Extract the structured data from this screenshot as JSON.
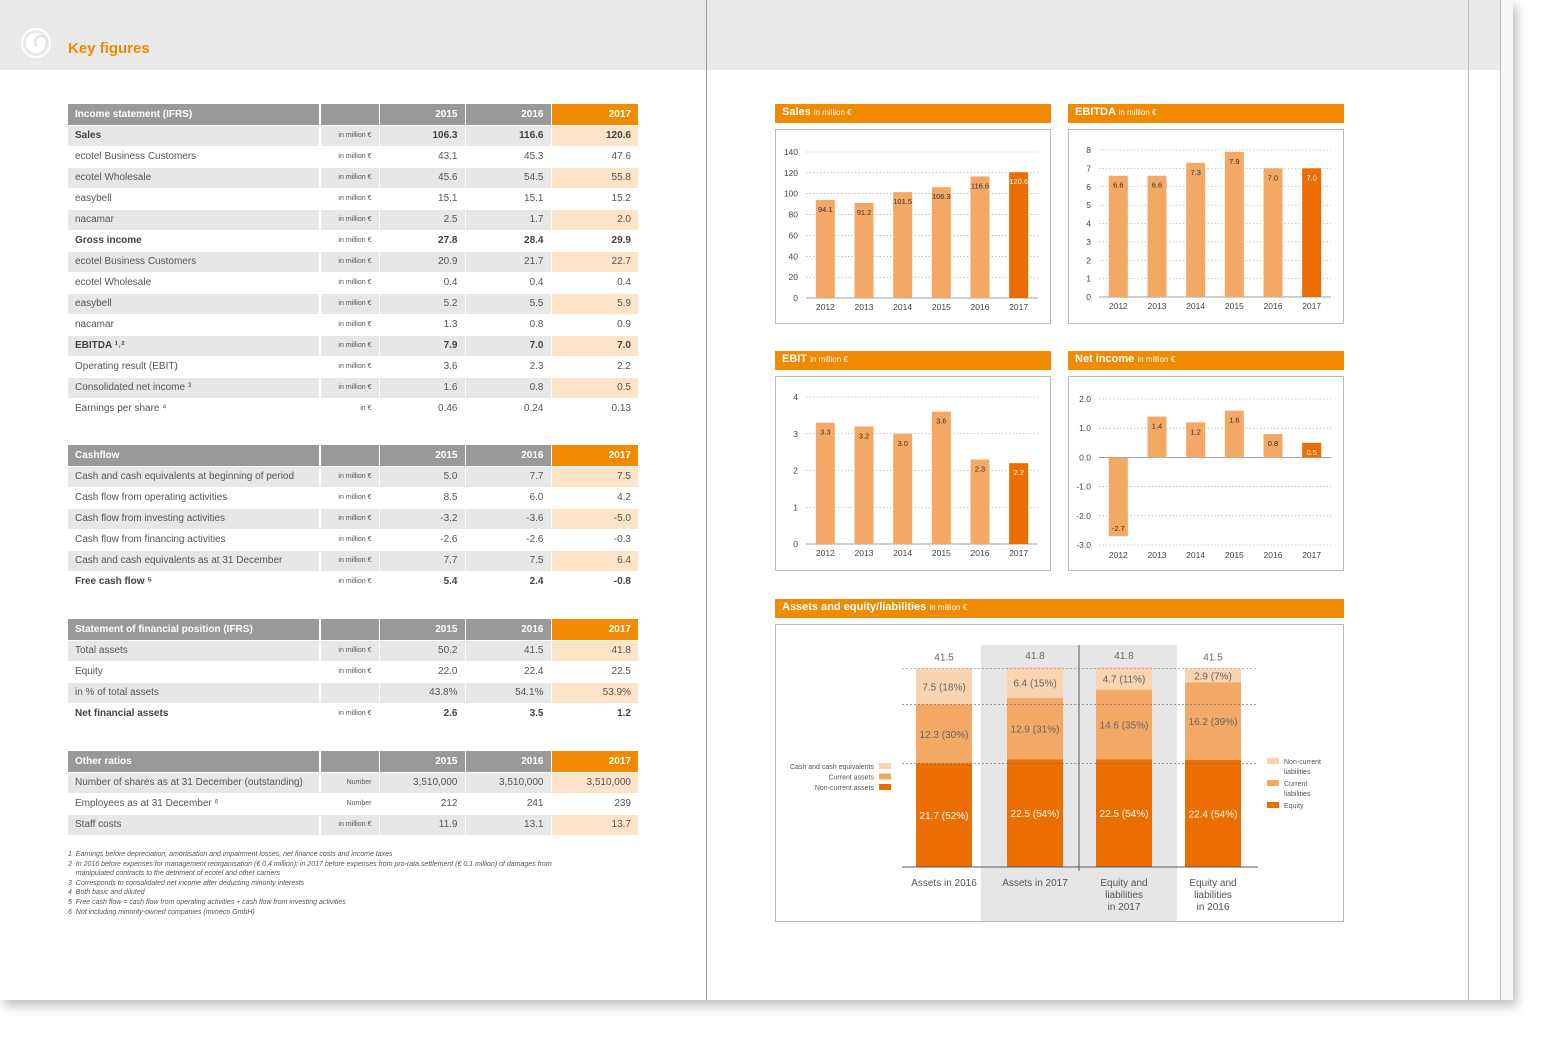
{
  "page_title": "Key figures",
  "colors": {
    "accent": "#f08a00",
    "dark_orange": "#ec6d00",
    "mid_orange": "#f4a865",
    "light_orange": "#fad3b1",
    "header_gray": "#999999"
  },
  "income": {
    "header": [
      "Income statement (IFRS)",
      "",
      "2015",
      "2016",
      "2017"
    ],
    "rows": [
      {
        "label": "Sales",
        "unit": "in million €",
        "v": [
          "106.3",
          "116.6",
          "120.6"
        ],
        "bold": true
      },
      {
        "label": "ecotel Business Customers",
        "unit": "in million €",
        "v": [
          "43.1",
          "45.3",
          "47.6"
        ]
      },
      {
        "label": "ecotel Wholesale",
        "unit": "in million €",
        "v": [
          "45.6",
          "54.5",
          "55.8"
        ]
      },
      {
        "label": "easybell",
        "unit": "in million €",
        "v": [
          "15.1",
          "15.1",
          "15.2"
        ]
      },
      {
        "label": "nacamar",
        "unit": "in million €",
        "v": [
          "2.5",
          "1.7",
          "2.0"
        ]
      },
      {
        "label": "Gross income",
        "unit": "in million €",
        "v": [
          "27.8",
          "28.4",
          "29.9"
        ],
        "bold": true
      },
      {
        "label": "ecotel Business Customers",
        "unit": "in million €",
        "v": [
          "20.9",
          "21.7",
          "22.7"
        ]
      },
      {
        "label": "ecotel Wholesale",
        "unit": "in million €",
        "v": [
          "0.4",
          "0.4",
          "0.4"
        ]
      },
      {
        "label": "easybell",
        "unit": "in million €",
        "v": [
          "5.2",
          "5.5",
          "5.9"
        ]
      },
      {
        "label": "nacamar",
        "unit": "in million €",
        "v": [
          "1.3",
          "0.8",
          "0.9"
        ]
      },
      {
        "label": "EBITDA ¹˒²",
        "unit": "in million €",
        "v": [
          "7.9",
          "7.0",
          "7.0"
        ],
        "bold": true
      },
      {
        "label": "Operating result (EBIT)",
        "unit": "in million €",
        "v": [
          "3.6",
          "2.3",
          "2.2"
        ]
      },
      {
        "label": "Consolidated net income ³",
        "unit": "in million €",
        "v": [
          "1.6",
          "0.8",
          "0.5"
        ]
      },
      {
        "label": "Earnings per share ⁴",
        "unit": "in €",
        "v": [
          "0.46",
          "0.24",
          "0.13"
        ]
      }
    ]
  },
  "cashflow": {
    "header": [
      "Cashflow",
      "",
      "2015",
      "2016",
      "2017"
    ],
    "rows": [
      {
        "label": "Cash and cash equivalents at beginning of period",
        "unit": "in million €",
        "v": [
          "5.0",
          "7.7",
          "7.5"
        ]
      },
      {
        "label": "Cash flow from operating activities",
        "unit": "in million €",
        "v": [
          "8.5",
          "6.0",
          "4.2"
        ]
      },
      {
        "label": "Cash flow from investing activities",
        "unit": "in million €",
        "v": [
          "-3.2",
          "-3.6",
          "-5.0"
        ]
      },
      {
        "label": "Cash flow from financing activities",
        "unit": "in million €",
        "v": [
          "-2.6",
          "-2.6",
          "-0.3"
        ]
      },
      {
        "label": "Cash and cash equivalents as at 31 December",
        "unit": "in million €",
        "v": [
          "7.7",
          "7.5",
          "6.4"
        ]
      },
      {
        "label": "Free cash flow ⁵",
        "unit": "in million €",
        "v": [
          "5.4",
          "2.4",
          "-0.8"
        ],
        "bold": true
      }
    ]
  },
  "position": {
    "header": [
      "Statement of financial position (IFRS)",
      "",
      "2015",
      "2016",
      "2017"
    ],
    "rows": [
      {
        "label": "Total assets",
        "unit": "in million €",
        "v": [
          "50.2",
          "41.5",
          "41.8"
        ]
      },
      {
        "label": "Equity",
        "unit": "in million €",
        "v": [
          "22.0",
          "22.4",
          "22.5"
        ]
      },
      {
        "label": "in % of total assets",
        "unit": "",
        "v": [
          "43.8%",
          "54.1%",
          "53.9%"
        ]
      },
      {
        "label": "Net financial assets",
        "unit": "in million €",
        "v": [
          "2.6",
          "3.5",
          "1.2"
        ],
        "bold": true
      }
    ]
  },
  "other": {
    "header": [
      "Other ratios",
      "",
      "2015",
      "2016",
      "2017"
    ],
    "rows": [
      {
        "label": "Number of shares as at 31 December (outstanding)",
        "unit": "Number",
        "v": [
          "3,510,000",
          "3,510,000",
          "3,510,000"
        ]
      },
      {
        "label": "Employees as at 31 December ⁶",
        "unit": "Number",
        "v": [
          "212",
          "241",
          "239"
        ]
      },
      {
        "label": "Staff costs",
        "unit": "in million €",
        "v": [
          "11.9",
          "13.1",
          "13.7"
        ]
      }
    ]
  },
  "footnotes": [
    "1  Earnings before depreciation, amortisation and impairment losses, net finance costs and income taxes",
    "2  In 2016 before expenses for management reorganisation (€ 0.4 million); in 2017 before expenses from pro-rata settlement (€ 0.1 million) of damages from",
    "    manipulated contracts to the detriment of ecotel and other carriers",
    "3  Corresponds to consolidated net income after deducting minority interests",
    "4  Both basic and diluted",
    "5  Free cash flow = cash flow from operating activities + cash flow from investing activities",
    "6  Not including minority-owned companies (mvneco GmbH)"
  ],
  "chart_data": [
    {
      "type": "bar",
      "title": "Sales",
      "unit": "in million €",
      "categories": [
        "2012",
        "2013",
        "2014",
        "2015",
        "2016",
        "2017"
      ],
      "values": [
        94.1,
        91.2,
        101.5,
        106.3,
        116.6,
        120.6
      ],
      "labels": [
        "94.1",
        "91.2",
        "101.5",
        "106.3",
        "116.6",
        "120.6"
      ],
      "yticks": [
        "0",
        "20",
        "40",
        "60",
        "80",
        "100",
        "120",
        "140"
      ],
      "ylim": [
        0,
        140
      ],
      "grid": true
    },
    {
      "type": "bar",
      "title": "EBITDA",
      "unit": "in million €",
      "categories": [
        "2012",
        "2013",
        "2014",
        "2015",
        "2016",
        "2017"
      ],
      "values": [
        6.6,
        6.6,
        7.3,
        7.9,
        7.0,
        7.0
      ],
      "labels": [
        "6.6",
        "6.6",
        "7.3",
        "7.9",
        "7.0",
        "7.0"
      ],
      "yticks": [
        "0",
        "1",
        "2",
        "3",
        "4",
        "5",
        "6",
        "7",
        "8"
      ],
      "ylim": [
        0,
        8
      ],
      "grid": true
    },
    {
      "type": "bar",
      "title": "EBIT",
      "unit": "in million €",
      "categories": [
        "2012",
        "2013",
        "2014",
        "2015",
        "2016",
        "2017"
      ],
      "values": [
        3.3,
        3.2,
        3.0,
        3.6,
        2.3,
        2.2
      ],
      "labels": [
        "3.3",
        "3.2",
        "3.0",
        "3.6",
        "2.3",
        "2.2"
      ],
      "yticks": [
        "0",
        "1",
        "2",
        "3",
        "4"
      ],
      "ylim": [
        0,
        4
      ],
      "grid": true
    },
    {
      "type": "bar",
      "title": "Net income",
      "unit": "in million €",
      "categories": [
        "2012",
        "2013",
        "2014",
        "2015",
        "2016",
        "2017"
      ],
      "values": [
        -2.7,
        1.4,
        1.2,
        1.6,
        0.8,
        0.5
      ],
      "labels": [
        "-2.7",
        "1.4",
        "1.2",
        "1.6",
        "0.8",
        "0.5"
      ],
      "yticks": [
        "-3.0",
        "-2.0",
        "-1.0",
        "0.0",
        "1.0",
        "2.0"
      ],
      "ylim": [
        -3,
        2
      ],
      "grid": true
    },
    {
      "type": "bar",
      "title": "Assets and equity/liabilities",
      "unit": "in million €",
      "stacked": true,
      "categories": [
        "Assets in 2016",
        "Assets in 2017",
        "Equity and liabilities in 2017",
        "Equity and liabilities in 2016"
      ],
      "category_lines": [
        [
          "Assets in 2016"
        ],
        [
          "Assets in 2017"
        ],
        [
          "Equity and",
          "liabilities",
          "in 2017"
        ],
        [
          "Equity and",
          "liabilities",
          "in 2016"
        ]
      ],
      "totals": [
        "41.5",
        "41.8",
        "41.8",
        "41.5"
      ],
      "series": [
        {
          "name": "Non-current assets / Equity",
          "values": [
            21.7,
            22.5,
            22.5,
            22.4
          ],
          "labels": [
            "21.7 (52%)",
            "22.5 (54%)",
            "22.5 (54%)",
            "22.4 (54%)"
          ]
        },
        {
          "name": "Current assets / Current liabilities",
          "values": [
            12.3,
            12.9,
            14.6,
            16.2
          ],
          "labels": [
            "12.3 (30%)",
            "12.9 (31%)",
            "14.6 (35%)",
            "16.2 (39%)"
          ]
        },
        {
          "name": "Cash and cash equivalents / Non-current liabilities",
          "values": [
            7.5,
            6.4,
            4.7,
            2.9
          ],
          "labels": [
            "7.5 (18%)",
            "6.4 (15%)",
            "4.7 (11%)",
            "2.9 (7%)"
          ]
        }
      ],
      "legend_left": [
        "Cash and cash equivalents",
        "Current assets",
        "Non-current assets"
      ],
      "legend_right": [
        [
          "Non-current",
          "liabilities"
        ],
        [
          "Current",
          "liabilities"
        ],
        [
          "Equity"
        ]
      ]
    }
  ]
}
